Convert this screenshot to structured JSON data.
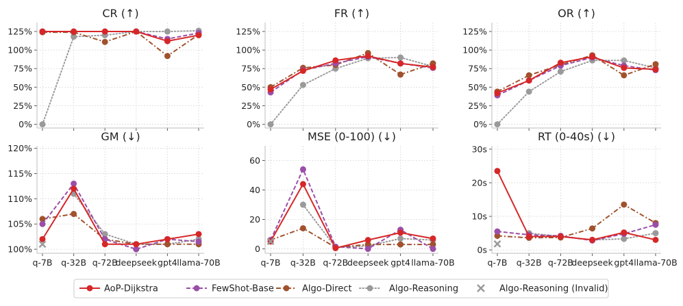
{
  "chart_data": [
    {
      "type": "line",
      "title": "CR (↑)",
      "ylim": [
        -5,
        137
      ],
      "yticks": [
        0,
        25,
        50,
        75,
        100,
        125
      ],
      "ytick_format": "pct",
      "categories": [
        "q-7B",
        "q-32B",
        "q-72B",
        "deepseek",
        "gpt4",
        "llama-70B"
      ],
      "series": [
        {
          "name": "AoP-Dijkstra",
          "values": [
            125,
            125,
            125,
            125,
            112,
            120
          ]
        },
        {
          "name": "FewShot-Base",
          "values": [
            125,
            125,
            125,
            125,
            115,
            123
          ]
        },
        {
          "name": "Algo-Direct",
          "values": [
            124,
            124,
            111,
            125,
            92,
            121
          ]
        },
        {
          "name": "Algo-Reasoning",
          "values": [
            0,
            118,
            120,
            125,
            125,
            126
          ]
        }
      ]
    },
    {
      "type": "line",
      "title": "FR (↑)",
      "ylim": [
        -5,
        137
      ],
      "yticks": [
        0,
        25,
        50,
        75,
        100,
        125
      ],
      "ytick_format": "pct",
      "categories": [
        "q-7B",
        "q-32B",
        "q-72B",
        "deepseek",
        "gpt4",
        "llama-70B"
      ],
      "series": [
        {
          "name": "AoP-Dijkstra",
          "values": [
            47,
            72,
            86,
            92,
            82,
            77
          ]
        },
        {
          "name": "FewShot-Base",
          "values": [
            43,
            73,
            82,
            91,
            82,
            76
          ]
        },
        {
          "name": "Algo-Direct",
          "values": [
            50,
            76,
            80,
            96,
            67,
            82
          ]
        },
        {
          "name": "Algo-Reasoning",
          "values": [
            0,
            53,
            75,
            89,
            90,
            78
          ]
        }
      ]
    },
    {
      "type": "line",
      "title": "OR (↑)",
      "ylim": [
        -5,
        137
      ],
      "yticks": [
        0,
        25,
        50,
        75,
        100,
        125
      ],
      "ytick_format": "pct",
      "categories": [
        "q-7B",
        "q-32B",
        "q-72B",
        "deepseek",
        "gpt4",
        "llama-70B"
      ],
      "series": [
        {
          "name": "AoP-Dijkstra",
          "values": [
            42,
            59,
            83,
            91,
            76,
            74
          ]
        },
        {
          "name": "FewShot-Base",
          "values": [
            39,
            59,
            79,
            90,
            79,
            73
          ]
        },
        {
          "name": "Algo-Direct",
          "values": [
            44,
            66,
            80,
            93,
            66,
            81
          ]
        },
        {
          "name": "Algo-Reasoning",
          "values": [
            0,
            44,
            71,
            86,
            86,
            76
          ]
        }
      ]
    },
    {
      "type": "line",
      "title": "GM (↓)",
      "ylim": [
        99.2,
        120.5
      ],
      "yticks": [
        100,
        105,
        110,
        115,
        120
      ],
      "ytick_format": "pct",
      "categories": [
        "q-7B",
        "q-32B",
        "q-72B",
        "deepseek",
        "gpt4",
        "llama-70B"
      ],
      "series": [
        {
          "name": "AoP-Dijkstra",
          "values": [
            102,
            112,
            101,
            101,
            102,
            103
          ]
        },
        {
          "name": "FewShot-Base",
          "values": [
            105,
            113,
            102,
            100,
            102,
            101.5
          ]
        },
        {
          "name": "Algo-Direct",
          "values": [
            106,
            107,
            102,
            101,
            101,
            101
          ]
        },
        {
          "name": "Algo-Reasoning",
          "values": [
            null,
            111,
            103,
            101,
            101,
            102
          ]
        }
      ],
      "invalid_points": [
        {
          "category": "q-7B",
          "value": 101
        }
      ]
    },
    {
      "type": "line",
      "title": "MSE (0-100) (↓)",
      "ylim": [
        -3,
        70
      ],
      "yticks": [
        0,
        20,
        40,
        60
      ],
      "ytick_format": "num",
      "categories": [
        "q-7B",
        "q-32B",
        "q-72B",
        "deepseek",
        "gpt4",
        "llama-70B"
      ],
      "series": [
        {
          "name": "AoP-Dijkstra",
          "values": [
            5,
            44,
            0.5,
            6,
            11,
            7
          ]
        },
        {
          "name": "FewShot-Base",
          "values": [
            6,
            54,
            1.5,
            0,
            13,
            0
          ]
        },
        {
          "name": "Algo-Direct",
          "values": [
            6,
            14,
            1,
            3,
            3,
            3
          ]
        },
        {
          "name": "Algo-Reasoning",
          "values": [
            null,
            30,
            1,
            2,
            7,
            6
          ]
        }
      ],
      "invalid_points": [
        {
          "category": "q-7B",
          "value": 5
        }
      ]
    },
    {
      "type": "line",
      "title": "RT (0-40s) (↓)",
      "ylim": [
        -1,
        31
      ],
      "yticks": [
        0,
        10,
        20,
        30
      ],
      "ytick_format": "sec",
      "categories": [
        "q-7B",
        "q-32B",
        "q-72B",
        "deepseek",
        "gpt4",
        "llama-70B"
      ],
      "series": [
        {
          "name": "AoP-Dijkstra",
          "values": [
            23.5,
            4,
            4,
            3,
            5.2,
            3
          ]
        },
        {
          "name": "FewShot-Base",
          "values": [
            5.5,
            4.5,
            4.2,
            2.8,
            4.8,
            7.5
          ]
        },
        {
          "name": "Algo-Direct",
          "values": [
            4.2,
            3.6,
            3.7,
            6.4,
            13.5,
            8
          ]
        },
        {
          "name": "Algo-Reasoning",
          "values": [
            null,
            5,
            4,
            3,
            3.3,
            5
          ]
        }
      ],
      "invalid_points": [
        {
          "category": "q-7B",
          "value": 1.8
        }
      ]
    }
  ],
  "legend": {
    "items": [
      {
        "label": "AoP-Dijkstra",
        "style": "solid-dot"
      },
      {
        "label": "FewShot-Base",
        "style": "dashed-dot"
      },
      {
        "label": "Algo-Direct",
        "style": "dashdot-dot"
      },
      {
        "label": "Algo-Reasoning",
        "style": "dotted-dot"
      },
      {
        "label": "Algo-Reasoning (Invalid)",
        "style": "x-marker"
      }
    ]
  },
  "colors": {
    "AoP-Dijkstra": "#d62728",
    "FewShot-Base": "#9b4ea8",
    "Algo-Direct": "#a0522d",
    "Algo-Reasoning": "#9a9a9a",
    "Algo-Reasoning (Invalid)": "#9a9a9a"
  }
}
